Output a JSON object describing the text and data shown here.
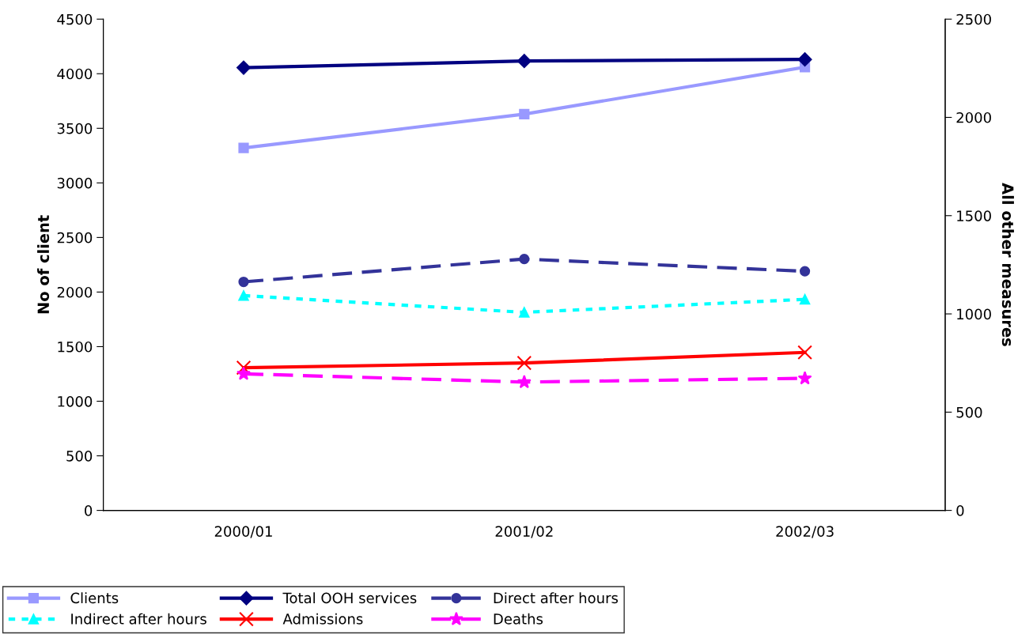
{
  "chart_data": {
    "type": "line",
    "ylabel": "No of client",
    "y2label": "All other measures",
    "categories": [
      "2000/01",
      "2001/02",
      "2002/03"
    ],
    "ylim": [
      0,
      4500
    ],
    "yticks": [
      0,
      500,
      1000,
      1500,
      2000,
      2500,
      3000,
      3500,
      4000,
      4500
    ],
    "y2lim": [
      0,
      2500
    ],
    "y2ticks": [
      0,
      500,
      1000,
      1500,
      2000,
      2500
    ],
    "grid": false,
    "legend": "bottom",
    "series": [
      {
        "name": "Clients",
        "color": "#9999ff",
        "values": [
          3320,
          3630,
          4060
        ],
        "marker": "square",
        "line_style": "solid"
      },
      {
        "name": "Total OOH services",
        "color": "#000080",
        "values": [
          2253,
          2287,
          2295
        ],
        "axis": "y2",
        "marker": "diamond",
        "line_style": "solid"
      },
      {
        "name": "Direct after hours",
        "color": "#333399",
        "values": [
          1163,
          1279,
          1217
        ],
        "axis": "y2",
        "marker": "circle",
        "line_style": "dashed"
      },
      {
        "name": "Indirect after hours",
        "color": "#00ffff",
        "values": [
          1093,
          1008,
          1074
        ],
        "axis": "y2",
        "marker": "triangle",
        "line_style": "dotted"
      },
      {
        "name": "Admissions",
        "color": "#ff0000",
        "values": [
          726,
          750,
          804
        ],
        "axis": "y2",
        "marker": "cross",
        "line_style": "solid"
      },
      {
        "name": "Deaths",
        "color": "#ff00ff",
        "values": [
          695,
          653,
          672
        ],
        "axis": "y2",
        "marker": "star",
        "line_style": "dashed"
      }
    ]
  }
}
